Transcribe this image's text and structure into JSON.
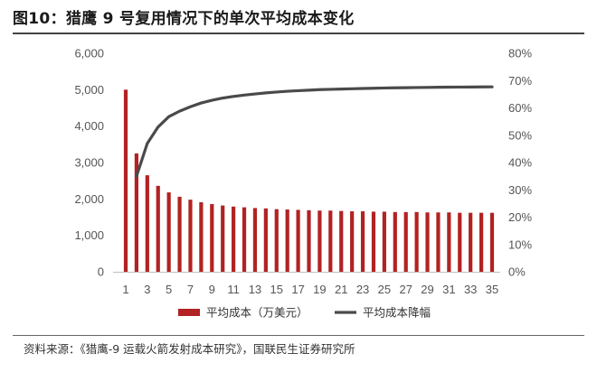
{
  "title": "图10：猎鹰 9 号复用情况下的单次平均成本变化",
  "source": "资料来源：《猎鹰-9 运载火箭发射成本研究》，国联民生证券研究所",
  "chart_data": {
    "type": "bar",
    "x": [
      1,
      2,
      3,
      4,
      5,
      6,
      7,
      8,
      9,
      10,
      11,
      12,
      13,
      14,
      15,
      16,
      17,
      18,
      19,
      20,
      21,
      22,
      23,
      24,
      25,
      26,
      27,
      28,
      29,
      30,
      31,
      32,
      33,
      34,
      35
    ],
    "x_tick_labels": [
      "1",
      "3",
      "5",
      "7",
      "9",
      "11",
      "13",
      "15",
      "17",
      "19",
      "21",
      "23",
      "25",
      "27",
      "29",
      "31",
      "33",
      "35"
    ],
    "series": [
      {
        "name": "平均成本（万美元）",
        "type": "bar",
        "axis": "left",
        "color": "#B22222",
        "values": [
          5000,
          3250,
          2650,
          2360,
          2180,
          2060,
          1980,
          1910,
          1860,
          1820,
          1790,
          1770,
          1750,
          1740,
          1720,
          1710,
          1700,
          1690,
          1680,
          1680,
          1670,
          1660,
          1660,
          1650,
          1650,
          1640,
          1640,
          1640,
          1630,
          1630,
          1630,
          1620,
          1620,
          1620,
          1620
        ]
      },
      {
        "name": "平均成本降幅",
        "type": "line",
        "axis": "right",
        "color": "#4A4A4A",
        "values": [
          null,
          35,
          47,
          53,
          56.8,
          58.8,
          60.4,
          61.8,
          62.8,
          63.6,
          64.2,
          64.7,
          65.1,
          65.5,
          65.8,
          66.1,
          66.3,
          66.5,
          66.7,
          66.8,
          66.9,
          67.0,
          67.1,
          67.2,
          67.3,
          67.35,
          67.4,
          67.45,
          67.5,
          67.55,
          67.6,
          67.62,
          67.65,
          67.68,
          67.7
        ]
      }
    ],
    "y_left": {
      "min": 0,
      "max": 6000,
      "ticks": [
        "0",
        "1,000",
        "2,000",
        "3,000",
        "4,000",
        "5,000",
        "6,000"
      ]
    },
    "y_right": {
      "min": 0,
      "max": 80,
      "ticks": [
        "0%",
        "10%",
        "20%",
        "30%",
        "40%",
        "50%",
        "60%",
        "70%",
        "80%"
      ]
    },
    "legend_position": "bottom",
    "grid": false
  }
}
